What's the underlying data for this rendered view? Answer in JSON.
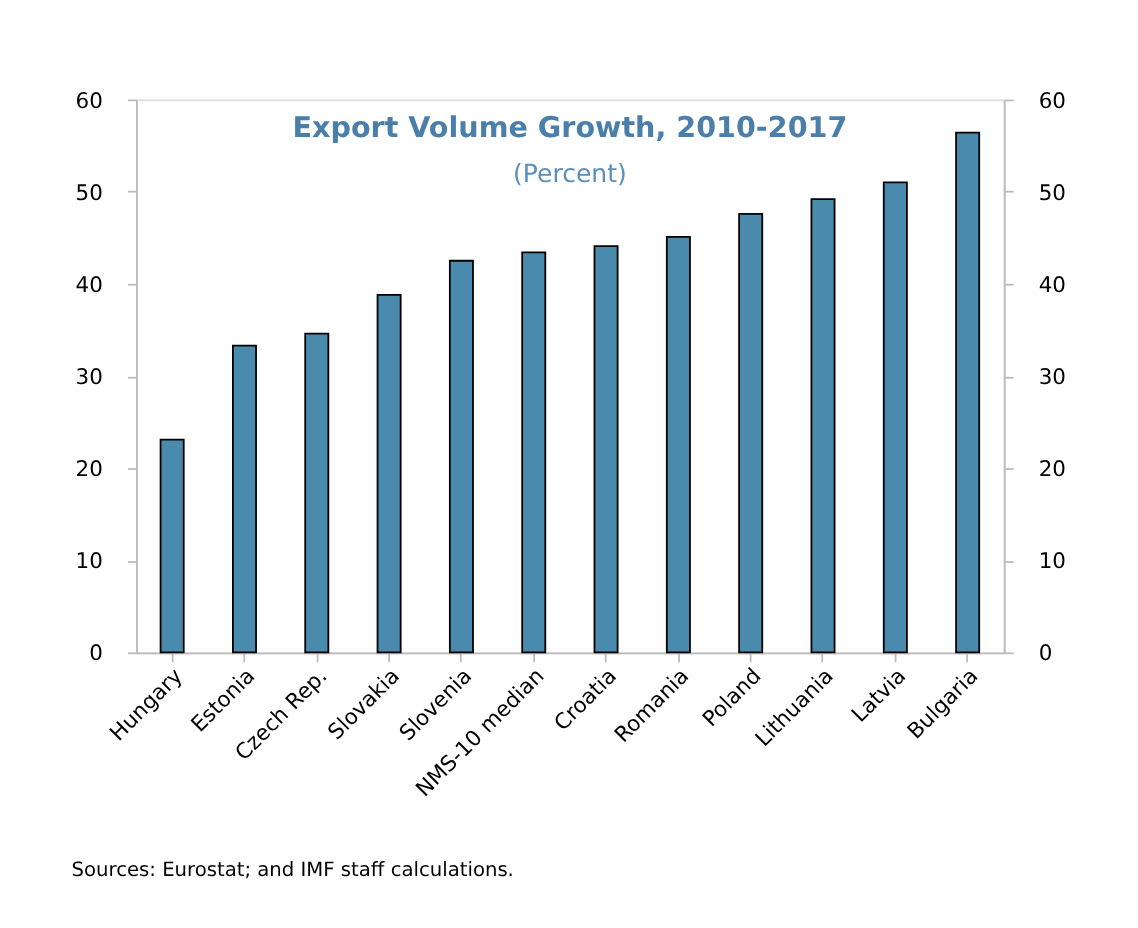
{
  "chart_data": {
    "type": "bar",
    "title": "Export Volume Growth, 2010-2017",
    "subtitle": "(Percent)",
    "categories": [
      "Hungary",
      "Estonia",
      "Czech Rep.",
      "Slovakia",
      "Slovenia",
      "NMS-10 median",
      "Croatia",
      "Romania",
      "Poland",
      "Lithuania",
      "Latvia",
      "Bulgaria"
    ],
    "values": [
      23.1,
      33.3,
      34.6,
      38.8,
      42.5,
      43.4,
      44.1,
      45.1,
      47.6,
      49.2,
      51.0,
      56.4
    ],
    "color": "#4a8aad",
    "ylim": [
      0,
      60
    ],
    "yticks": [
      0,
      10,
      20,
      30,
      40,
      50,
      60
    ],
    "y2lim": [
      0,
      60
    ],
    "y2ticks": [
      0,
      10,
      20,
      30,
      40,
      50,
      60
    ],
    "grid": false,
    "annotations": [
      "Sources: Eurostat; and IMF staff calculations."
    ]
  }
}
